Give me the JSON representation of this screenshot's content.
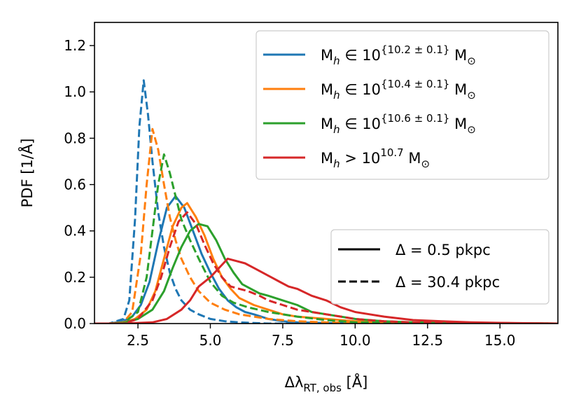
{
  "chart_data": {
    "type": "line",
    "xlabel_main": "Δλ",
    "xlabel_sub": "RT, obs",
    "xlabel_unit": " [Å]",
    "ylabel": "PDF [1/Å]",
    "xlim": [
      1.0,
      17.0
    ],
    "ylim": [
      0.0,
      1.3
    ],
    "xticks": [
      2.5,
      5.0,
      7.5,
      10.0,
      12.5,
      15.0
    ],
    "xtick_labels": [
      "2.5",
      "5.0",
      "7.5",
      "10.0",
      "12.5",
      "15.0"
    ],
    "yticks": [
      0.0,
      0.2,
      0.4,
      0.6,
      0.8,
      1.0,
      1.2
    ],
    "ytick_labels": [
      "0.0",
      "0.2",
      "0.4",
      "0.6",
      "0.8",
      "1.0",
      "1.2"
    ],
    "legend_position": "top-right",
    "style_legend_position": "lower-right",
    "series": [
      {
        "name": "M_h ∈ 10^{10.2 ± 0.1} M_⊙",
        "legend_main": "M",
        "legend_sub": "h",
        "legend_mid": " ∈ 10",
        "legend_sup": "{10.2 ± 0.1}",
        "legend_end": " M",
        "legend_end_sub": "⊙",
        "color": "#1f77b4",
        "solid": {
          "x": [
            1.0,
            1.5,
            2.0,
            2.3,
            2.6,
            2.9,
            3.2,
            3.5,
            3.8,
            4.1,
            4.4,
            4.7,
            5.0,
            5.3,
            5.6,
            5.9,
            6.2,
            6.5,
            7.0,
            7.5,
            8.0,
            9.0,
            10.0,
            12.0,
            17.0
          ],
          "y": [
            0.0,
            0.0,
            0.01,
            0.03,
            0.08,
            0.18,
            0.35,
            0.5,
            0.55,
            0.5,
            0.4,
            0.3,
            0.22,
            0.15,
            0.1,
            0.07,
            0.05,
            0.04,
            0.02,
            0.01,
            0.005,
            0.002,
            0.001,
            0.0,
            0.0
          ]
        },
        "dashed": {
          "x": [
            1.0,
            1.5,
            2.0,
            2.2,
            2.4,
            2.55,
            2.7,
            2.85,
            3.0,
            3.2,
            3.4,
            3.6,
            3.8,
            4.0,
            4.3,
            4.6,
            5.0,
            5.5,
            6.0,
            7.0,
            17.0
          ],
          "y": [
            0.0,
            0.0,
            0.02,
            0.1,
            0.45,
            0.85,
            1.05,
            0.9,
            0.7,
            0.48,
            0.33,
            0.22,
            0.15,
            0.1,
            0.06,
            0.04,
            0.02,
            0.01,
            0.005,
            0.0,
            0.0
          ]
        }
      },
      {
        "name": "M_h ∈ 10^{10.4 ± 0.1} M_⊙",
        "legend_main": "M",
        "legend_sub": "h",
        "legend_mid": " ∈ 10",
        "legend_sup": "{10.4 ± 0.1}",
        "legend_end": " M",
        "legend_end_sub": "⊙",
        "color": "#ff7f0e",
        "solid": {
          "x": [
            1.0,
            1.5,
            2.0,
            2.4,
            2.8,
            3.1,
            3.4,
            3.7,
            4.0,
            4.2,
            4.5,
            4.8,
            5.1,
            5.4,
            5.7,
            6.0,
            6.5,
            7.0,
            7.5,
            8.0,
            9.0,
            10.0,
            12.0,
            17.0
          ],
          "y": [
            0.0,
            0.0,
            0.005,
            0.02,
            0.06,
            0.14,
            0.28,
            0.42,
            0.5,
            0.52,
            0.46,
            0.38,
            0.28,
            0.2,
            0.15,
            0.11,
            0.08,
            0.06,
            0.04,
            0.03,
            0.02,
            0.01,
            0.003,
            0.0
          ]
        },
        "dashed": {
          "x": [
            1.0,
            1.5,
            2.0,
            2.3,
            2.6,
            2.8,
            3.0,
            3.2,
            3.4,
            3.6,
            3.8,
            4.0,
            4.3,
            4.6,
            5.0,
            5.5,
            6.0,
            6.5,
            7.0,
            8.0,
            9.0,
            17.0
          ],
          "y": [
            0.0,
            0.0,
            0.005,
            0.05,
            0.3,
            0.6,
            0.84,
            0.75,
            0.6,
            0.46,
            0.36,
            0.28,
            0.2,
            0.14,
            0.09,
            0.06,
            0.04,
            0.03,
            0.02,
            0.01,
            0.005,
            0.0
          ]
        }
      },
      {
        "name": "M_h ∈ 10^{10.6 ± 0.1} M_⊙",
        "legend_main": "M",
        "legend_sub": "h",
        "legend_mid": " ∈ 10",
        "legend_sup": "{10.6 ± 0.1}",
        "legend_end": " M",
        "legend_end_sub": "⊙",
        "color": "#2ca02c",
        "solid": {
          "x": [
            1.0,
            1.5,
            2.0,
            2.5,
            3.0,
            3.4,
            3.7,
            4.0,
            4.3,
            4.6,
            4.9,
            5.2,
            5.5,
            5.8,
            6.1,
            6.4,
            6.7,
            7.0,
            7.5,
            8.0,
            8.5,
            9.0,
            10.0,
            11.0,
            12.0,
            17.0
          ],
          "y": [
            0.0,
            0.0,
            0.003,
            0.02,
            0.06,
            0.14,
            0.24,
            0.33,
            0.4,
            0.43,
            0.42,
            0.36,
            0.28,
            0.22,
            0.17,
            0.15,
            0.13,
            0.12,
            0.1,
            0.08,
            0.05,
            0.04,
            0.02,
            0.01,
            0.005,
            0.0
          ]
        },
        "dashed": {
          "x": [
            1.0,
            1.5,
            2.0,
            2.5,
            2.8,
            3.0,
            3.2,
            3.4,
            3.6,
            3.8,
            4.0,
            4.3,
            4.6,
            5.0,
            5.4,
            5.8,
            6.3,
            7.0,
            8.0,
            9.0,
            10.0,
            17.0
          ],
          "y": [
            0.0,
            0.0,
            0.003,
            0.05,
            0.2,
            0.4,
            0.6,
            0.73,
            0.65,
            0.55,
            0.45,
            0.36,
            0.28,
            0.18,
            0.12,
            0.09,
            0.07,
            0.05,
            0.03,
            0.015,
            0.005,
            0.0
          ]
        }
      },
      {
        "name": "M_h > 10^{10.7} M_⊙",
        "legend_main": "M",
        "legend_sub": "h",
        "legend_mid": " > 10",
        "legend_sup": "10.7",
        "legend_end": " M",
        "legend_end_sub": "⊙",
        "color": "#d62728",
        "solid": {
          "x": [
            1.0,
            2.0,
            3.0,
            3.5,
            4.0,
            4.3,
            4.6,
            5.0,
            5.3,
            5.6,
            5.9,
            6.2,
            6.5,
            6.8,
            7.1,
            7.4,
            7.7,
            8.0,
            8.5,
            9.0,
            9.5,
            10.0,
            10.5,
            11.0,
            12.0,
            13.0,
            14.0,
            15.0,
            17.0
          ],
          "y": [
            0.0,
            0.0,
            0.005,
            0.02,
            0.06,
            0.1,
            0.16,
            0.2,
            0.24,
            0.28,
            0.27,
            0.26,
            0.24,
            0.22,
            0.2,
            0.18,
            0.16,
            0.15,
            0.12,
            0.1,
            0.07,
            0.05,
            0.04,
            0.03,
            0.015,
            0.01,
            0.005,
            0.003,
            0.0
          ]
        },
        "dashed": {
          "x": [
            1.0,
            2.0,
            2.5,
            3.0,
            3.3,
            3.6,
            3.9,
            4.2,
            4.5,
            4.8,
            5.1,
            5.4,
            5.7,
            6.0,
            6.3,
            6.7,
            7.0,
            7.5,
            8.0,
            9.0,
            10.0,
            11.0,
            12.0,
            17.0
          ],
          "y": [
            0.0,
            0.0,
            0.02,
            0.1,
            0.2,
            0.33,
            0.44,
            0.48,
            0.43,
            0.34,
            0.26,
            0.2,
            0.16,
            0.15,
            0.14,
            0.12,
            0.1,
            0.08,
            0.06,
            0.04,
            0.02,
            0.01,
            0.005,
            0.0
          ]
        }
      }
    ],
    "styles": [
      {
        "dash": "solid",
        "label": "Δ = 0.5 pkpc"
      },
      {
        "dash": "dashed",
        "label": "Δ = 30.4 pkpc"
      }
    ]
  }
}
